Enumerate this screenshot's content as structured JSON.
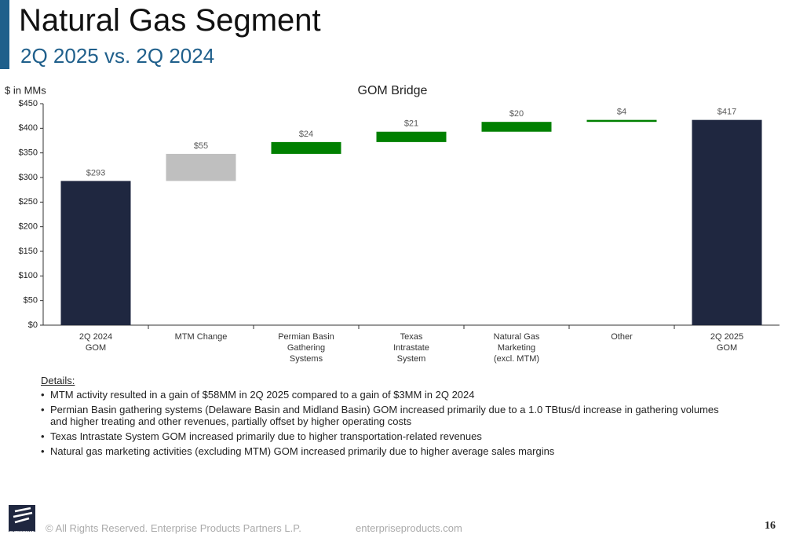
{
  "header": {
    "title": "Natural Gas Segment",
    "subtitle": "2Q 2025 vs. 2Q 2024"
  },
  "chart_data": {
    "type": "waterfall",
    "title": "GOM Bridge",
    "y_label": "$ in MMs",
    "categories": [
      "2Q 2024\nGOM",
      "MTM Change",
      "Permian Basin\nGathering\nSystems",
      "Texas\nIntrastate\nSystem",
      "Natural Gas\nMarketing\n(excl. MTM)",
      "Other",
      "2Q 2025\nGOM"
    ],
    "values": [
      293,
      55,
      24,
      21,
      20,
      4,
      417
    ],
    "value_labels": [
      "$293",
      "$55",
      "$24",
      "$21",
      "$20",
      "$4",
      "$417"
    ],
    "colors": [
      "#1f2740",
      "#bfbfbf",
      "#008000",
      "#008000",
      "#008000",
      "#008000",
      "#1f2740"
    ],
    "ylim": [
      0,
      450
    ],
    "yticks": [
      {
        "value": 0,
        "label": "$0"
      },
      {
        "value": 50,
        "label": "$50"
      },
      {
        "value": 100,
        "label": "$100"
      },
      {
        "value": 150,
        "label": "$150"
      },
      {
        "value": 200,
        "label": "$200"
      },
      {
        "value": 250,
        "label": "$250"
      },
      {
        "value": 300,
        "label": "$300"
      },
      {
        "value": 350,
        "label": "$350"
      },
      {
        "value": 400,
        "label": "$400"
      },
      {
        "value": 450,
        "label": "$450"
      }
    ],
    "grid": false
  },
  "details": {
    "heading": "Details:",
    "bullets": [
      "MTM activity resulted in a gain of $58MM in 2Q 2025 compared to a gain of $3MM in 2Q 2024",
      "Permian Basin gathering systems (Delaware Basin and Midland Basin) GOM increased primarily due to a 1.0 TBtus/d increase in gathering volumes and higher treating and other revenues, partially offset by higher operating costs",
      "Texas Intrastate System GOM increased primarily due to higher transportation-related revenues",
      "Natural gas marketing activities (excluding MTM) GOM increased primarily due to higher average sales margins"
    ]
  },
  "footer": {
    "logo_text": "ENTERPRISE",
    "copyright": "© All Rights Reserved. Enterprise Products Partners L.P.",
    "website": "enterpriseproducts.com",
    "page": "16"
  }
}
